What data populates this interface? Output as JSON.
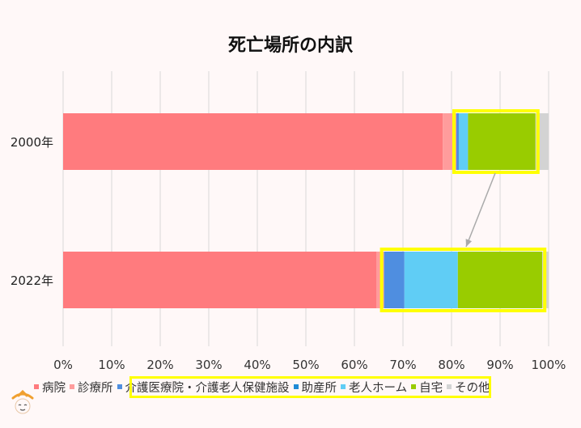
{
  "chart_data": {
    "type": "bar",
    "orientation": "horizontal",
    "stacked": true,
    "title": "死亡場所の内訳",
    "categories": [
      "2000年",
      "2022年"
    ],
    "series": [
      {
        "name": "病院",
        "color": "#ff7b7e",
        "values": [
          78.2,
          64.5
        ]
      },
      {
        "name": "診療所",
        "color": "#ff9c9c",
        "values": [
          2.8,
          1.6
        ]
      },
      {
        "name": "介護医療院・介護老人保健施設",
        "color": "#4f8ee0",
        "values": [
          0.5,
          4.2
        ]
      },
      {
        "name": "助産所",
        "color": "#1f8bd6",
        "values": [
          0.0,
          0.0
        ]
      },
      {
        "name": "老人ホーム",
        "color": "#60cdf5",
        "values": [
          1.9,
          11.0
        ]
      },
      {
        "name": "自宅",
        "color": "#99cc00",
        "values": [
          13.9,
          17.4
        ]
      },
      {
        "name": "その他",
        "color": "#d3d3d3",
        "values": [
          2.7,
          1.3
        ]
      }
    ],
    "xlim": [
      0,
      100
    ],
    "x_ticks": [
      "0%",
      "10%",
      "20%",
      "30%",
      "40%",
      "50%",
      "60%",
      "70%",
      "80%",
      "90%",
      "100%"
    ],
    "grid": true,
    "legend_position": "bottom",
    "annotations": "yellow boxes highlight 介護医療院・介護老人保健施設, 老人ホーム and 自宅 segments; arrow from 2000年 box to 2022年 box"
  },
  "colors": {
    "highlight": "#ffff00",
    "gridline": "#d9d9d9",
    "arrow": "#aaaaaa"
  }
}
